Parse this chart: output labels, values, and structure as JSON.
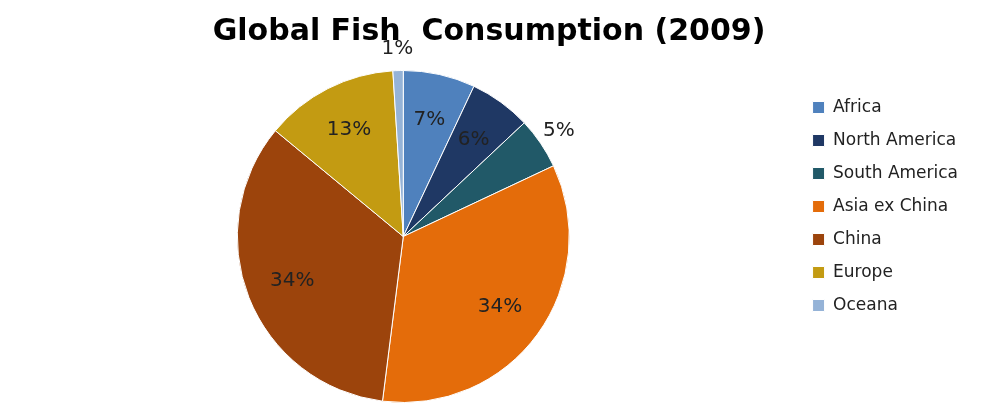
{
  "chart_data": {
    "type": "pie",
    "title": "Global Fish  Consumption (2009)",
    "categories": [
      "Africa",
      "North America",
      "South America",
      "Asia ex China",
      "China",
      "Europe",
      "Oceana"
    ],
    "values": [
      7,
      6,
      5,
      34,
      34,
      13,
      1
    ],
    "value_labels": [
      "7%",
      "6%",
      "5%",
      "34%",
      "34%",
      "13%",
      "1%"
    ],
    "colors": [
      "#4f81bd",
      "#1f3864",
      "#215968",
      "#e46c0a",
      "#9c440c",
      "#c39b12",
      "#95b3d7"
    ],
    "legend": "right"
  }
}
